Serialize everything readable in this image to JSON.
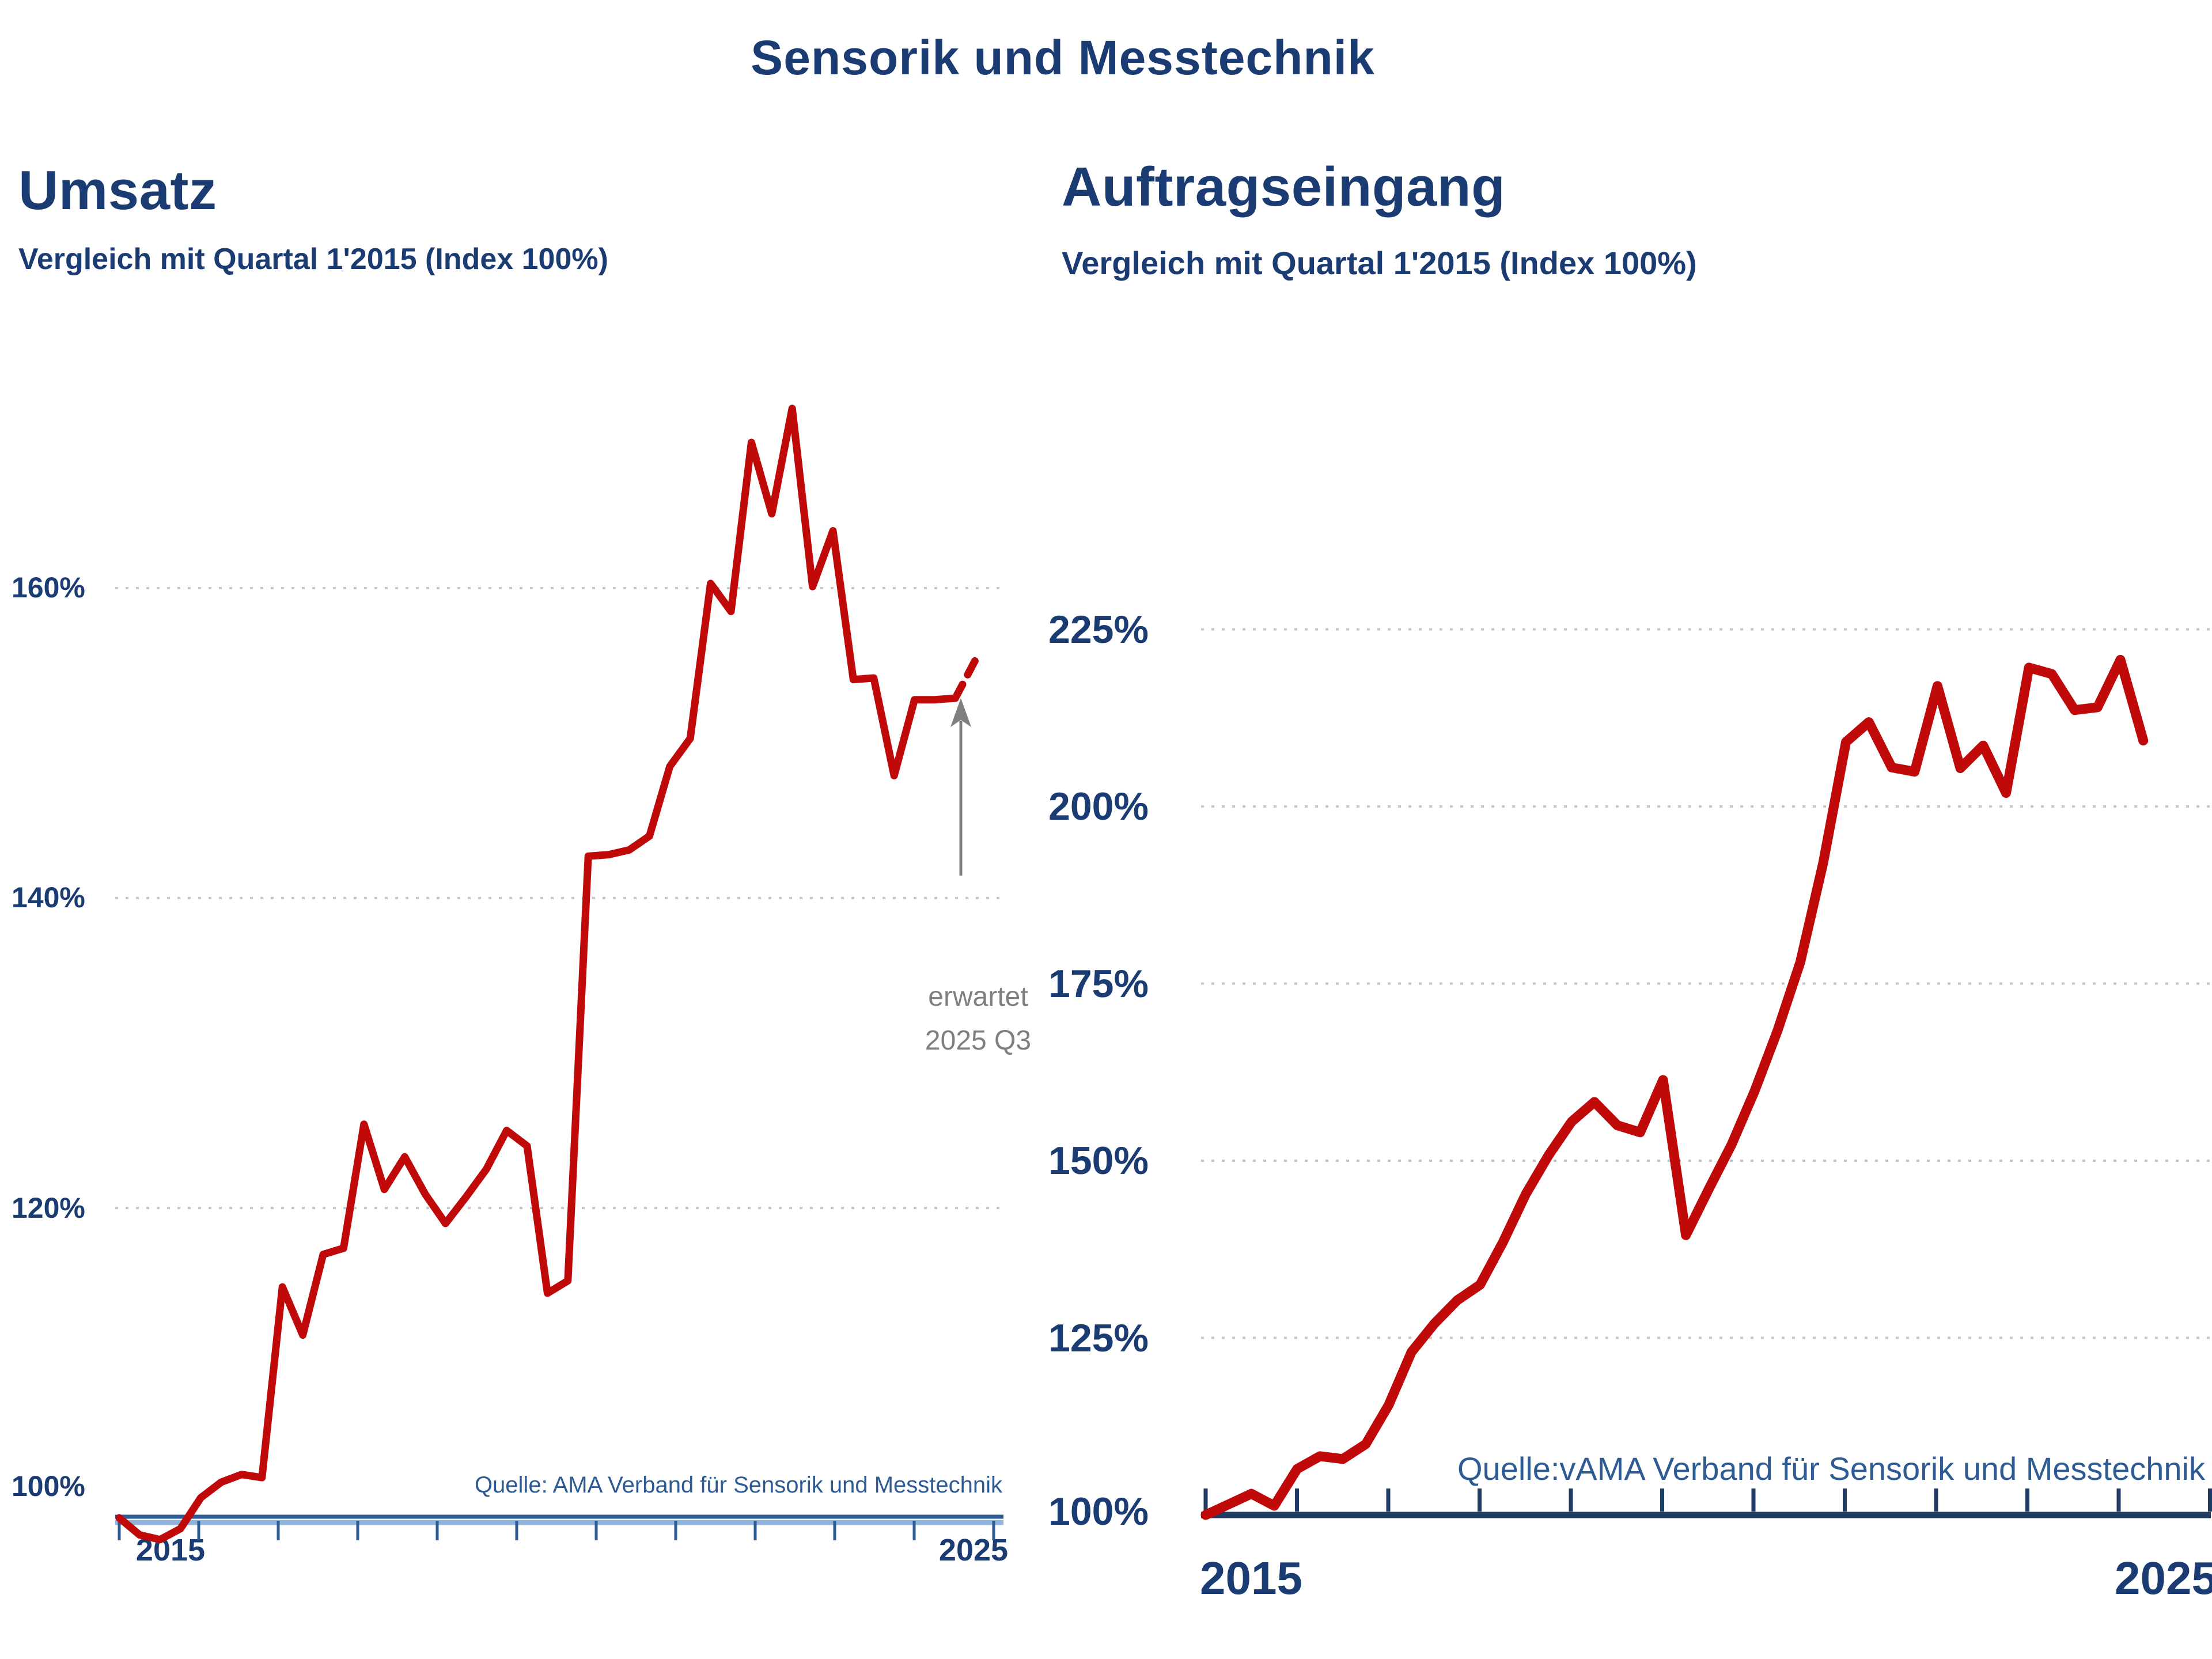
{
  "page_title": "Sensorik und Messtechnik",
  "colors": {
    "line_red": "#c00a0a",
    "heading_navy": "#1b3c72",
    "axis_blue_left": "#2e5b94",
    "axis_navy_right": "#1f3a63",
    "annotation_gray": "#7f7f7f",
    "gridline_gray": "#c6c6c6"
  },
  "chart_data": [
    {
      "type": "line",
      "title": "Umsatz",
      "subtitle": "Vergleich mit Quartal 1'2015 (Index 100%)",
      "source": "Quelle: AMA Verband für Sensorik und Messtechnik",
      "x_start": "2015 Q1",
      "x_end": "2025 Q2",
      "x_step": "quarter",
      "x_tick_labels": [
        "2015",
        "2025"
      ],
      "y_ticks": [
        160,
        140,
        120,
        100
      ],
      "y_tick_labels": [
        "160%",
        "140%",
        "120%",
        "100%"
      ],
      "ylim": [
        95,
        175
      ],
      "grid": "horizontal-dotted",
      "legend": "none",
      "line_color": "#c00a0a",
      "values": [
        100.0,
        98.9,
        98.6,
        99.3,
        101.3,
        102.3,
        102.8,
        102.6,
        114.9,
        111.8,
        117.0,
        117.4,
        125.4,
        121.2,
        123.3,
        120.9,
        119.0,
        120.7,
        122.5,
        125.0,
        124.0,
        114.5,
        115.3,
        142.7,
        142.8,
        143.1,
        144.0,
        148.5,
        150.3,
        160.3,
        158.5,
        169.4,
        164.8,
        171.6,
        160.1,
        163.7,
        154.1,
        154.2,
        147.9,
        152.8,
        152.8,
        152.9
      ],
      "forecast": {
        "value": 155.4,
        "x": "2025 Q3",
        "style": "dashed",
        "label_line1": "erwartet",
        "label_line2": "2025 Q3"
      }
    },
    {
      "type": "line",
      "title": "Auftragseingang",
      "subtitle": "Vergleich mit Quartal 1'2015 (Index 100%)",
      "source": "Quelle:vAMA Verband für Sensorik und Messtechnik",
      "x_start": "2015 Q1",
      "x_end": "2025 Q2",
      "x_step": "quarter",
      "x_tick_labels": [
        "2015",
        "2025"
      ],
      "y_ticks": [
        225,
        200,
        175,
        150,
        125,
        100
      ],
      "y_tick_labels": [
        "225%",
        "200%",
        "175%",
        "150%",
        "125%",
        "100%"
      ],
      "ylim": [
        95,
        235
      ],
      "grid": "horizontal-dotted",
      "legend": "none",
      "line_color": "#c00a0a",
      "values": [
        100.0,
        101.5,
        103.0,
        101.3,
        106.5,
        108.3,
        107.9,
        110.0,
        115.5,
        123.0,
        127.0,
        130.3,
        132.5,
        138.5,
        145.3,
        150.8,
        155.5,
        158.3,
        155.0,
        154.0,
        161.4,
        139.5,
        146.0,
        152.3,
        159.8,
        168.3,
        178.0,
        192.0,
        209.1,
        211.9,
        205.5,
        204.9,
        217.0,
        205.4,
        208.6,
        201.9,
        219.6,
        218.7,
        213.6,
        214.0,
        220.7,
        209.3
      ],
      "forecast": null
    }
  ]
}
